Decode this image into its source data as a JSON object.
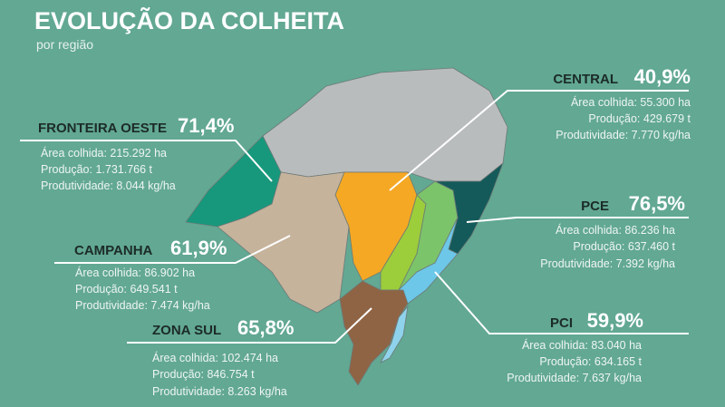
{
  "header": {
    "title": "EVOLUÇÃO DA COLHEITA",
    "subtitle": "por região"
  },
  "regions": [
    {
      "name": "CENTRAL",
      "percent": "40,9%",
      "lines": [
        "Área colhida: 55.300 ha",
        "Produção: 429.679 t",
        "Produtividade: 7.770 kg/ha"
      ]
    },
    {
      "name": "FRONTEIRA OESTE",
      "percent": "71,4%",
      "lines": [
        "Área colhida: 215.292 ha",
        "Produção: 1.731.766 t",
        "Produtividade: 8.044 kg/ha"
      ]
    },
    {
      "name": "CAMPANHA",
      "percent": "61,9%",
      "lines": [
        "Área colhida: 86.902 ha",
        "Produção: 649.541 t",
        "Produtividade: 7.474 kg/ha"
      ]
    },
    {
      "name": "ZONA SUL",
      "percent": "65,8%",
      "lines": [
        "Área colhida: 102.474 ha",
        "Produção: 846.754 t",
        "Produtividade: 8.263 kg/ha"
      ]
    },
    {
      "name": "PCE",
      "percent": "76,5%",
      "lines": [
        "Área colhida: 86.236 ha",
        "Produção: 637.460 t",
        "Produtividade: 7.392 kg/ha"
      ]
    },
    {
      "name": "PCI",
      "percent": "59,9%",
      "lines": [
        "Área colhida: 83.040 ha",
        "Produção: 634.165 t",
        "Produtividade: 7.637 kg/ha"
      ]
    }
  ]
}
